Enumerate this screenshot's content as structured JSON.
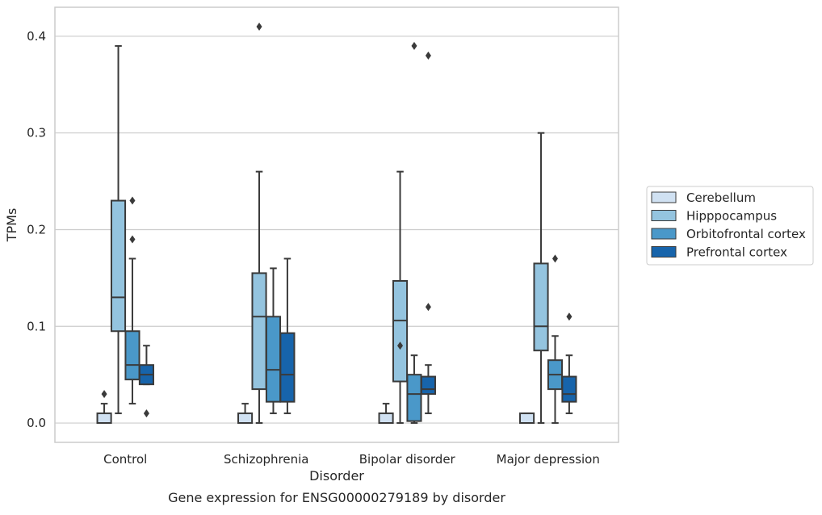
{
  "chart_data": {
    "type": "box",
    "title": "Gene expression for ENSG00000279189 by disorder",
    "xlabel": "Disorder",
    "ylabel": "TPMs",
    "ylim": [
      -0.02,
      0.43
    ],
    "yticks": [
      0.0,
      0.1,
      0.2,
      0.3,
      0.4
    ],
    "ytick_labels": [
      "0.0",
      "0.1",
      "0.2",
      "0.3",
      "0.4"
    ],
    "grid": true,
    "legend_position": "right",
    "categories": [
      "Control",
      "Schizophrenia",
      "Bipolar disorder",
      "Major depression"
    ],
    "series": [
      {
        "name": "Cerebellum",
        "color": "#d0e1f2",
        "boxes": [
          {
            "whislo": 0.0,
            "q1": 0.0,
            "med": 0.0,
            "q3": 0.01,
            "whishi": 0.02,
            "fliers": [
              0.03
            ]
          },
          {
            "whislo": 0.0,
            "q1": 0.0,
            "med": 0.0,
            "q3": 0.01,
            "whishi": 0.02,
            "fliers": []
          },
          {
            "whislo": 0.0,
            "q1": 0.0,
            "med": 0.0,
            "q3": 0.01,
            "whishi": 0.02,
            "fliers": []
          },
          {
            "whislo": 0.0,
            "q1": 0.0,
            "med": 0.0,
            "q3": 0.01,
            "whishi": 0.01,
            "fliers": []
          }
        ]
      },
      {
        "name": "Hipppocampus",
        "color": "#94c4df",
        "boxes": [
          {
            "whislo": 0.01,
            "q1": 0.095,
            "med": 0.13,
            "q3": 0.23,
            "whishi": 0.39,
            "fliers": []
          },
          {
            "whislo": 0.0,
            "q1": 0.035,
            "med": 0.11,
            "q3": 0.155,
            "whishi": 0.26,
            "fliers": [
              0.41
            ]
          },
          {
            "whislo": 0.0,
            "q1": 0.043,
            "med": 0.106,
            "q3": 0.147,
            "whishi": 0.26,
            "fliers": [
              0.08
            ]
          },
          {
            "whislo": 0.0,
            "q1": 0.075,
            "med": 0.1,
            "q3": 0.165,
            "whishi": 0.3,
            "fliers": []
          }
        ]
      },
      {
        "name": "Orbitofrontal cortex",
        "color": "#4a98c9",
        "boxes": [
          {
            "whislo": 0.02,
            "q1": 0.045,
            "med": 0.06,
            "q3": 0.095,
            "whishi": 0.17,
            "fliers": [
              0.19,
              0.23
            ]
          },
          {
            "whislo": 0.01,
            "q1": 0.022,
            "med": 0.055,
            "q3": 0.11,
            "whishi": 0.16,
            "fliers": []
          },
          {
            "whislo": 0.0,
            "q1": 0.002,
            "med": 0.03,
            "q3": 0.05,
            "whishi": 0.07,
            "fliers": [
              0.39
            ]
          },
          {
            "whislo": 0.0,
            "q1": 0.035,
            "med": 0.05,
            "q3": 0.065,
            "whishi": 0.09,
            "fliers": [
              0.17
            ]
          }
        ]
      },
      {
        "name": "Prefrontal cortex",
        "color": "#1764ab",
        "boxes": [
          {
            "whislo": 0.04,
            "q1": 0.04,
            "med": 0.05,
            "q3": 0.06,
            "whishi": 0.08,
            "fliers": [
              0.01
            ]
          },
          {
            "whislo": 0.01,
            "q1": 0.022,
            "med": 0.05,
            "q3": 0.093,
            "whishi": 0.17,
            "fliers": []
          },
          {
            "whislo": 0.01,
            "q1": 0.03,
            "med": 0.035,
            "q3": 0.048,
            "whishi": 0.06,
            "fliers": [
              0.12,
              0.38
            ]
          },
          {
            "whislo": 0.01,
            "q1": 0.022,
            "med": 0.03,
            "q3": 0.048,
            "whishi": 0.07,
            "fliers": [
              0.11
            ]
          }
        ]
      }
    ]
  }
}
